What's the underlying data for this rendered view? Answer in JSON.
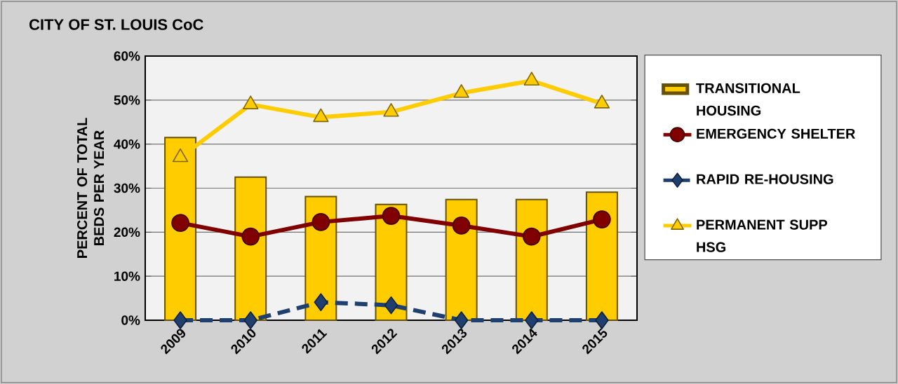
{
  "chart_data": {
    "type": "bar",
    "title": "CITY OF ST. LOUIS CoC",
    "ylabel": "PERCENT OF TOTAL BEDS PER YEAR",
    "categories": [
      "2009",
      "2010",
      "2011",
      "2012",
      "2013",
      "2014",
      "2015"
    ],
    "series": [
      {
        "name": "TRANSITIONAL HOUSING",
        "color": "#ffcc00",
        "values": [
          41.5,
          32.5,
          28.1,
          26.3,
          27.4,
          27.4,
          29.1
        ]
      },
      {
        "name": "EMERGENCY SHELTER",
        "type": "line",
        "color": "#800000",
        "marker": "circle",
        "line_style": "solid",
        "values": [
          22.1,
          19.0,
          22.3,
          23.7,
          21.5,
          19.0,
          22.9
        ]
      },
      {
        "name": "RAPID RE-HOUSING",
        "type": "line",
        "color": "#1f3f6f",
        "marker": "diamond",
        "line_style": "dashed",
        "values": [
          0,
          0,
          4.1,
          3.4,
          0,
          0,
          0
        ]
      },
      {
        "name": "PERMANENT SUPP HSG",
        "type": "line",
        "color": "#ffcc00",
        "marker": "triangle",
        "line_style": "solid",
        "values": [
          37.0,
          49.0,
          46.1,
          47.3,
          51.6,
          54.4,
          49.2
        ]
      }
    ],
    "ylim": [
      0,
      60
    ],
    "yticks": [
      {
        "value": 0,
        "label": "0%"
      },
      {
        "value": 10,
        "label": "10%"
      },
      {
        "value": 20,
        "label": "20%"
      },
      {
        "value": 30,
        "label": "30%"
      },
      {
        "value": 40,
        "label": "40%"
      },
      {
        "value": 50,
        "label": "50%"
      },
      {
        "value": 60,
        "label": "60%"
      }
    ],
    "grid": "y",
    "legend": "right"
  }
}
